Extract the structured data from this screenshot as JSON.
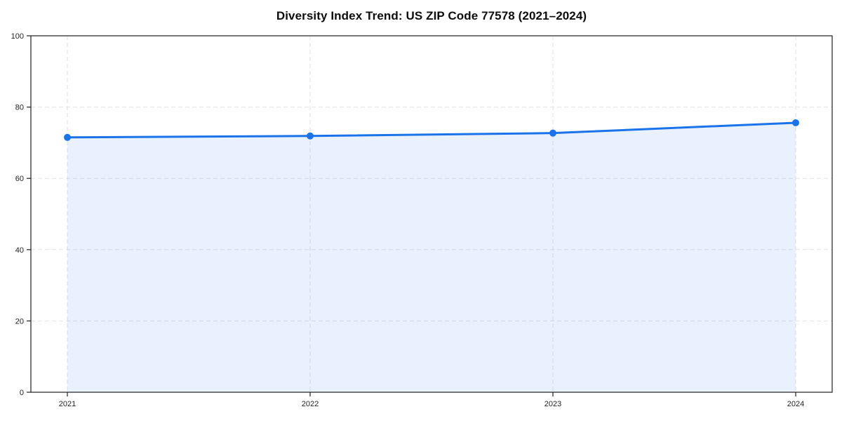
{
  "chart_data": {
    "type": "area",
    "title": "Diversity Index Trend: US ZIP Code 77578 (2021–2024)",
    "categories": [
      "2021",
      "2022",
      "2023",
      "2024"
    ],
    "series": [
      {
        "name": "Diversity Index",
        "values": [
          71.5,
          71.9,
          72.7,
          75.6
        ]
      }
    ],
    "xlabel": "",
    "ylabel": "",
    "ylim": [
      0,
      100
    ],
    "yticks": [
      0,
      20,
      40,
      60,
      80,
      100
    ],
    "grid": true,
    "grid_style": "dashed",
    "legend": "none",
    "marker": "circle",
    "colors": {
      "line": "#1a73e8",
      "marker": "#1a73e8",
      "fill": "rgba(26,115,232,0.10)",
      "grid": "#e2e2e2",
      "axis": "#1f1f1f",
      "tick_label": "#1f1f1f",
      "title": "#0d0d0d",
      "background": "#ffffff"
    }
  }
}
